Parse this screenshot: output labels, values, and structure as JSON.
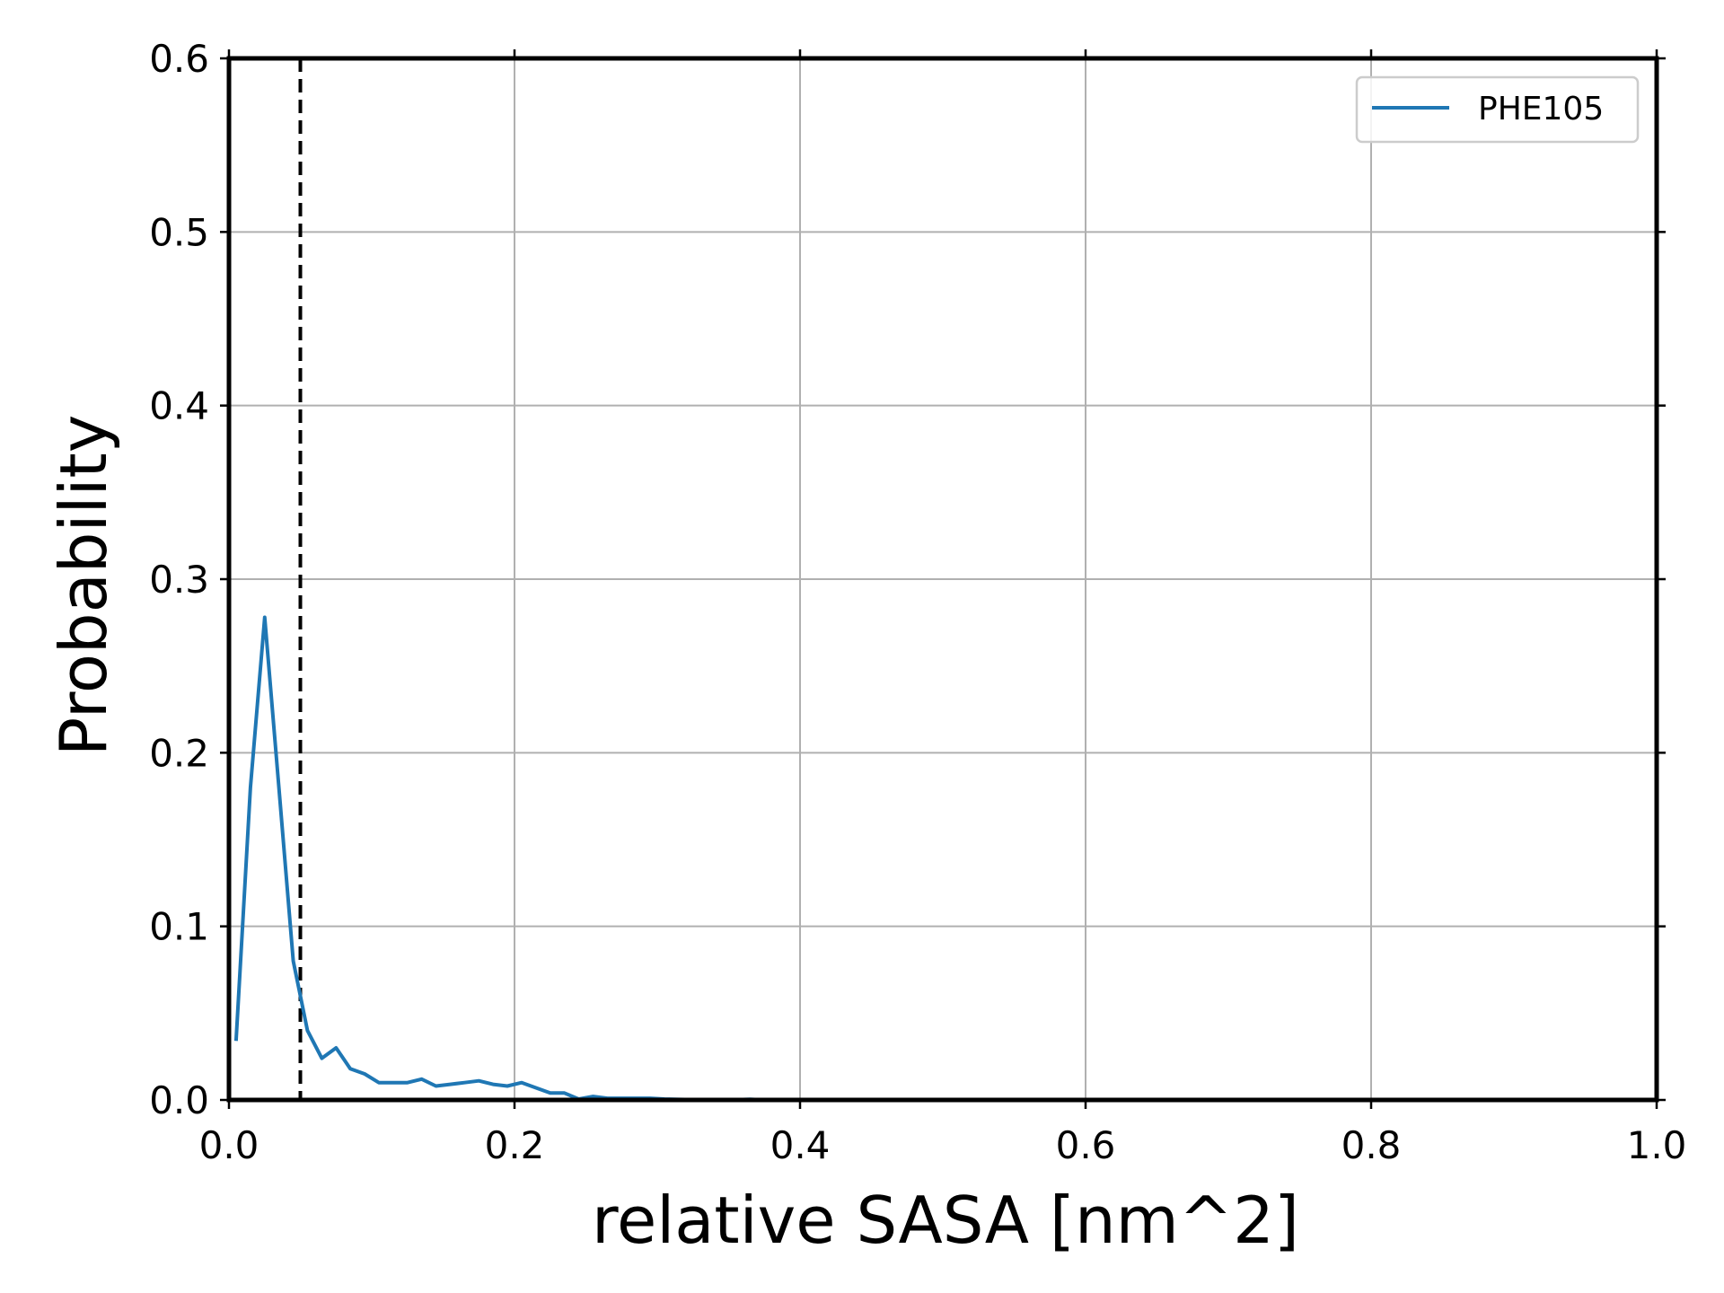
{
  "chart_data": {
    "type": "line",
    "xlabel": "relative SASA [nm^2]",
    "ylabel": "Probability",
    "xlim": [
      0.0,
      1.0
    ],
    "ylim": [
      0.0,
      0.6
    ],
    "xticks": [
      "0.0",
      "0.2",
      "0.4",
      "0.6",
      "0.8",
      "1.0"
    ],
    "yticks": [
      "0.0",
      "0.1",
      "0.2",
      "0.3",
      "0.4",
      "0.5",
      "0.6"
    ],
    "grid": true,
    "legend_position": "top-right",
    "threshold": {
      "x": 0.05,
      "style": "dashed",
      "color": "#000000"
    },
    "series": [
      {
        "name": "PHE105",
        "color": "#1f77b4",
        "x": [
          0.005,
          0.015,
          0.025,
          0.035,
          0.045,
          0.055,
          0.065,
          0.075,
          0.085,
          0.095,
          0.105,
          0.115,
          0.125,
          0.135,
          0.145,
          0.155,
          0.165,
          0.175,
          0.185,
          0.195,
          0.205,
          0.215,
          0.225,
          0.235,
          0.245,
          0.255,
          0.265,
          0.275,
          0.285,
          0.295,
          0.305,
          0.315,
          0.325,
          0.335,
          0.345,
          0.355,
          0.365,
          0.375
        ],
        "y": [
          0.034,
          0.18,
          0.278,
          0.18,
          0.08,
          0.04,
          0.024,
          0.03,
          0.018,
          0.015,
          0.01,
          0.01,
          0.01,
          0.012,
          0.008,
          0.009,
          0.01,
          0.011,
          0.009,
          0.008,
          0.01,
          0.007,
          0.004,
          0.004,
          0.0005,
          0.002,
          0.001,
          0.001,
          0.001,
          0.001,
          0.0005,
          0.0003,
          0.0002,
          0.0002,
          0.0001,
          0.0001,
          0.0004,
          0.0
        ]
      }
    ]
  }
}
